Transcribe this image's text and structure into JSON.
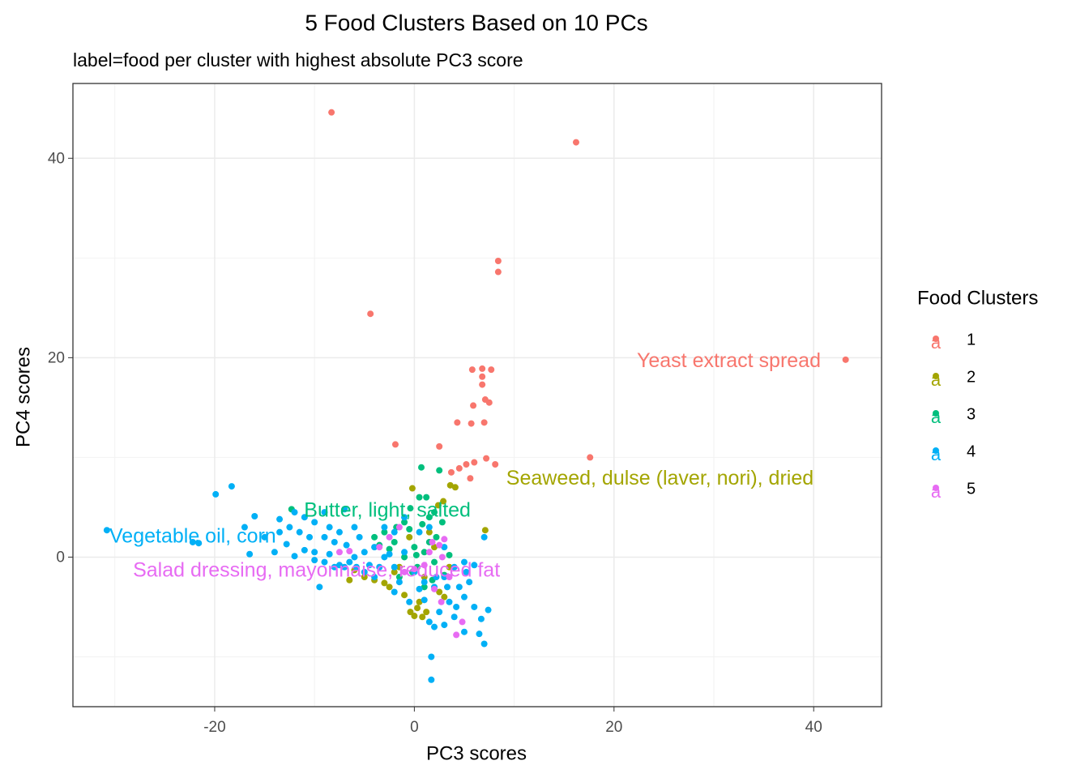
{
  "chart_data": {
    "type": "scatter",
    "title": "5 Food Clusters Based on 10 PCs",
    "subtitle": "label=food per cluster with highest absolute PC3 score",
    "x_label": "PC3 scores",
    "y_label": "PC4 scores",
    "legend_title": "Food Clusters",
    "legend_position": "right",
    "grid": true,
    "xlim": [
      -34.2,
      46.8
    ],
    "xticks": [
      -20,
      0,
      20,
      40
    ],
    "ylim": [
      -15.0,
      47.5
    ],
    "yticks": [
      0,
      20,
      40
    ],
    "series": [
      {
        "name": "1",
        "color": "#F8766D",
        "x": [
          -8.3,
          16.2,
          8.4,
          8.4,
          -4.4,
          43.2,
          5.8,
          6.8,
          7.7,
          6.8,
          6.8,
          7.1,
          7.5,
          5.9,
          4.3,
          7.0,
          5.7,
          -1.9,
          2.5,
          17.6,
          7.2,
          8.1,
          6.0,
          4.5,
          5.2,
          3.7,
          5.6
        ],
        "y": [
          44.6,
          41.6,
          29.7,
          28.6,
          24.4,
          19.8,
          18.8,
          18.9,
          18.8,
          18.1,
          17.3,
          15.8,
          15.5,
          15.2,
          13.5,
          13.5,
          13.4,
          11.3,
          11.1,
          10.0,
          9.9,
          9.3,
          9.5,
          8.9,
          9.3,
          8.5,
          7.9
        ]
      },
      {
        "name": "2",
        "color": "#A3A500",
        "x": [
          7.1,
          -0.2,
          3.6,
          4.1,
          2.9,
          2.4,
          0.3,
          0,
          -0.4,
          -4.0,
          -6.5,
          -5,
          -2.5,
          -1.5,
          1,
          2.5,
          3,
          0.5,
          1.5,
          -0.5,
          -2,
          2,
          3.5,
          -3,
          -6,
          -1,
          1.2,
          0.8
        ],
        "y": [
          2.7,
          6.9,
          7.2,
          7.0,
          5.6,
          5.2,
          -5.1,
          -5.9,
          -5.5,
          -2.3,
          -2.3,
          -2.0,
          -3.0,
          -1,
          -2,
          -3.5,
          -4,
          -4.5,
          2.5,
          2,
          -1.5,
          1,
          -1,
          -2.6,
          -1.3,
          -3.8,
          -5.5,
          -6.0
        ]
      },
      {
        "name": "3",
        "color": "#00BF7D",
        "x": [
          0.7,
          2.5,
          0.5,
          1.2,
          -0.4,
          1.5,
          2.0,
          -1.0,
          -3,
          -4,
          -2,
          0,
          1,
          -1,
          2,
          0.3,
          -1.5,
          1.8,
          3,
          -0.5,
          0.8,
          2.2,
          -2.5,
          -3.5,
          -12.3,
          -0.2,
          1.5,
          3.5,
          0.2,
          -1.8,
          2.8,
          1
        ],
        "y": [
          9.0,
          8.7,
          6.0,
          6.0,
          4.9,
          4.0,
          4.5,
          3.5,
          2.5,
          2.0,
          1.5,
          1,
          0.5,
          0,
          -0.5,
          -1,
          -2,
          -2.3,
          -1.8,
          2.8,
          3.3,
          2,
          0.8,
          1.2,
          4.8,
          -1.5,
          1.5,
          0.2,
          0.2,
          3,
          3.5,
          -3
        ]
      },
      {
        "name": "4",
        "color": "#00B0F6",
        "x": [
          -30.8,
          -22.2,
          -21.6,
          -19.9,
          -18.3,
          -16,
          -17,
          -15,
          -13.5,
          -12,
          -11,
          -10,
          -12.5,
          -11.5,
          -10.5,
          -9,
          -8,
          -7,
          -8.5,
          -14,
          -11,
          -10,
          -9,
          -9.5,
          -8,
          -7,
          -6,
          -5,
          -4,
          -3,
          -2,
          -1,
          0,
          1,
          2,
          3,
          4,
          5,
          5.2,
          4.5,
          3.5,
          2.5,
          1.5,
          2,
          3,
          5,
          6.5,
          7.0,
          7.4,
          6,
          6.7,
          1.7,
          1.7,
          7.0,
          5,
          4,
          -2,
          -4,
          -5,
          -6.5,
          -3,
          -2,
          -1,
          0.5,
          1.5,
          3,
          -7.5,
          -9,
          -6,
          -5.5,
          -4.5,
          -3.5,
          -2.5,
          -1.5,
          0.5,
          1,
          2.2,
          3.3,
          4.2,
          -12.8,
          -13.5,
          -10,
          -7.5,
          -0.5,
          5.5,
          6,
          -16.5,
          -12,
          -8.5,
          -6.8,
          -5.8
        ],
        "y": [
          2.7,
          1.5,
          1.4,
          6.3,
          7.1,
          4.1,
          3,
          2,
          2.5,
          4.5,
          4,
          3.5,
          3,
          2.5,
          2,
          2,
          1.5,
          4.8,
          3,
          0.5,
          0.7,
          0.5,
          -0.5,
          -3,
          -1,
          -1,
          0,
          0.5,
          1,
          0,
          -1,
          0.5,
          -1.5,
          -2.5,
          -3,
          -2,
          -1,
          -0.5,
          -1.5,
          -3,
          -4.5,
          -5.5,
          -6.5,
          -7,
          -6.8,
          -7.5,
          -7.7,
          -8.7,
          -5.3,
          -5,
          -6.2,
          -10,
          -12.3,
          2.0,
          -4,
          -6,
          -3.5,
          -2,
          -1.5,
          -0.5,
          3,
          2.5,
          4,
          2.5,
          3,
          1,
          2.5,
          4.5,
          3,
          2,
          -0.8,
          -1,
          0.3,
          -2.5,
          -3.2,
          -4.3,
          -2,
          -3,
          -5,
          1.3,
          3.8,
          -0.3,
          -0.8,
          -4.5,
          -2.5,
          -0.8,
          0.3,
          0.1,
          0.3,
          1.2,
          -1
        ]
      },
      {
        "name": "5",
        "color": "#E76BF3",
        "x": [
          4.2,
          1.5,
          2.5,
          3,
          -1.5,
          -2.5,
          -6.5,
          -1.0,
          2.7,
          2,
          0,
          1,
          3.5,
          -7.5,
          2.8,
          1.8,
          -3.5,
          4.8
        ],
        "y": [
          -7.8,
          0.5,
          1.2,
          1.8,
          3,
          2.0,
          0.6,
          -1.5,
          -4.5,
          -3.2,
          -1.2,
          -0.8,
          -2,
          0.5,
          0,
          1.5,
          1,
          -6.5
        ]
      }
    ],
    "annotations": [
      {
        "text": "Yeast extract spread",
        "x": 31.5,
        "y": 19.6,
        "series": "1"
      },
      {
        "text": "Seaweed, dulse (laver, nori), dried",
        "x": 24.6,
        "y": 7.8,
        "series": "2"
      },
      {
        "text": "Butter, light, salted",
        "x": -2.7,
        "y": 4.6,
        "series": "3"
      },
      {
        "text": "Vegetable oil, corn",
        "x": -22.2,
        "y": 2.0,
        "series": "4"
      },
      {
        "text": "Salad dressing, mayonnaise, reduced fat",
        "x": -9.8,
        "y": -1.4,
        "series": "5"
      }
    ]
  }
}
